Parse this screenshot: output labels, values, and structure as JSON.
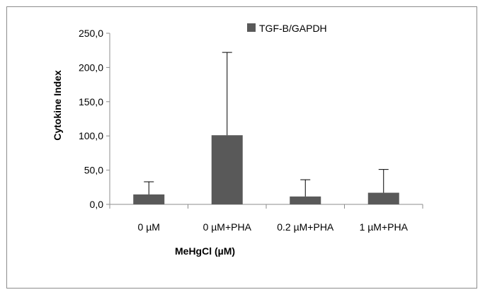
{
  "chart_data": {
    "type": "bar",
    "categories": [
      "0 µM",
      "0 µM+PHA",
      "0.2 µM+PHA",
      "1 µM+PHA"
    ],
    "series": [
      {
        "name": "TGF-B/GAPDH",
        "values": [
          14.5,
          101.0,
          11.5,
          17.0
        ],
        "error_plus": [
          18.5,
          121.0,
          24.5,
          34.0
        ],
        "color": "#595959"
      }
    ],
    "xlabel": "MeHgCl (µM)",
    "ylabel": "Cytokine Index",
    "ylim": [
      0,
      250
    ],
    "yticks": [
      "0,0",
      "50,0",
      "100,0",
      "150,0",
      "200,0",
      "250,0"
    ],
    "ytick_values": [
      0,
      50,
      100,
      150,
      200,
      250
    ],
    "grid": false,
    "legend_position": "top-right"
  }
}
